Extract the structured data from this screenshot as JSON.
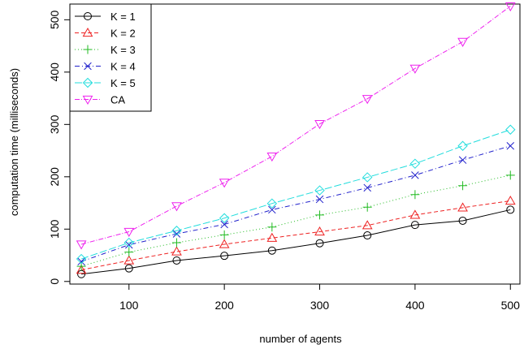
{
  "chart_data": {
    "type": "line",
    "xlabel": "number of agents",
    "ylabel": "computation time (milliseconds)",
    "x": [
      50,
      100,
      150,
      200,
      250,
      300,
      350,
      400,
      450,
      500
    ],
    "xlim": [
      38,
      510
    ],
    "ylim": [
      -5,
      530
    ],
    "x_ticks": [
      100,
      200,
      300,
      400,
      500
    ],
    "y_ticks": [
      0,
      100,
      200,
      300,
      400,
      500
    ],
    "grid": false,
    "legend_position": "top-left",
    "series": [
      {
        "name": "K = 1",
        "color": "#000000",
        "marker": "circle",
        "dash": "",
        "values": [
          14,
          25,
          40,
          49,
          59,
          73,
          88,
          108,
          116,
          137
        ]
      },
      {
        "name": "K = 2",
        "color": "#ee2222",
        "marker": "triangle-up",
        "dash": "5,3",
        "values": [
          22,
          40,
          57,
          71,
          83,
          95,
          107,
          127,
          141,
          154
        ]
      },
      {
        "name": "K = 3",
        "color": "#22bb22",
        "marker": "plus",
        "dash": "1,3",
        "values": [
          29,
          56,
          74,
          89,
          104,
          127,
          142,
          166,
          183,
          203
        ]
      },
      {
        "name": "K = 4",
        "color": "#2222cc",
        "marker": "cross",
        "dash": "6,3,1,3",
        "values": [
          38,
          70,
          91,
          109,
          137,
          157,
          179,
          203,
          232,
          259
        ]
      },
      {
        "name": "K = 5",
        "color": "#22dddd",
        "marker": "diamond",
        "dash": "9,3",
        "values": [
          43,
          74,
          97,
          121,
          149,
          174,
          199,
          225,
          259,
          290
        ]
      },
      {
        "name": "CA",
        "color": "#ee22ee",
        "marker": "triangle-down",
        "dash": "6,2,1,2",
        "values": [
          71,
          95,
          144,
          189,
          239,
          301,
          349,
          407,
          458,
          526
        ]
      }
    ]
  }
}
